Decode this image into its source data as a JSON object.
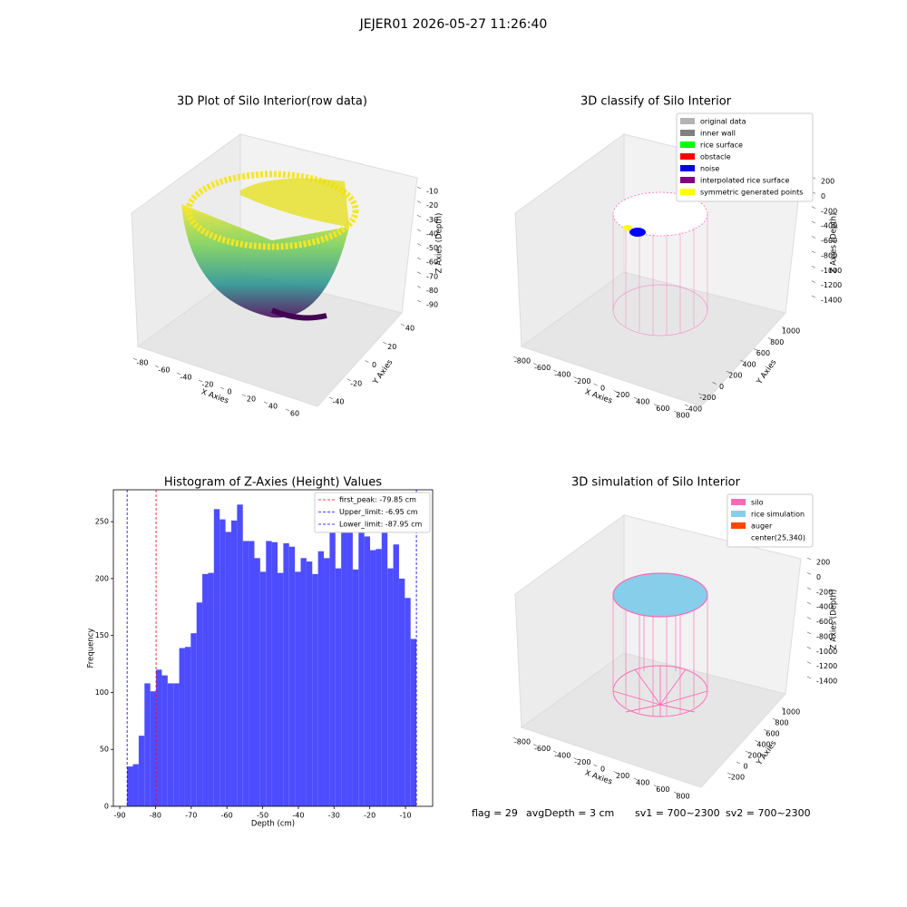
{
  "title": "JEJER01 2026-05-27 11:26:40",
  "chart_data": [
    {
      "type": "scatter3d",
      "title": "3D Plot of Silo Interior(row data)",
      "xlabel": "X Axies",
      "ylabel": "Y Axies",
      "zlabel": "Z Axies (Depth)",
      "xlim": [
        -80,
        60
      ],
      "xticks": [
        -80,
        -60,
        -40,
        -20,
        0,
        20,
        40,
        60
      ],
      "ylim": [
        -40,
        40
      ],
      "yticks": [
        -40,
        -20,
        0,
        20,
        40
      ],
      "zlim": [
        -10,
        -90
      ],
      "zticks": [
        -10,
        -20,
        -30,
        -40,
        -50,
        -60,
        -70,
        -80,
        -90
      ]
    },
    {
      "type": "scatter3d",
      "title": "3D classify of Silo Interior",
      "xlabel": "X Axies",
      "ylabel": "Y Axies",
      "zlabel": "Z Axies (Depth)",
      "xlim": [
        -800,
        800
      ],
      "xticks": [
        -800,
        -600,
        -400,
        -200,
        0,
        200,
        400,
        600,
        800
      ],
      "ylim": [
        -400,
        1000
      ],
      "yticks": [
        -400,
        -200,
        0,
        200,
        400,
        600,
        800,
        1000
      ],
      "zlim": [
        200,
        -1400
      ],
      "zticks": [
        200,
        0,
        -200,
        -400,
        -600,
        -800,
        -1000,
        -1200,
        -1400
      ],
      "series": [
        {
          "name": "original data",
          "color": "#b3b3b3"
        },
        {
          "name": "inner wall",
          "color": "#808080"
        },
        {
          "name": "rice surface",
          "color": "#00ff00"
        },
        {
          "name": "obstacle",
          "color": "#ff0000"
        },
        {
          "name": "noise",
          "color": "#0000ff"
        },
        {
          "name": "interpolated rice surface",
          "color": "#800080"
        },
        {
          "name": "symmetric generated points",
          "color": "#ffff00"
        }
      ]
    },
    {
      "type": "histogram",
      "title": "Histogram of Z-Axies (Height) Values",
      "xlabel": "Depth (cm)",
      "ylabel": "Frequency",
      "color": "#4d4dff",
      "bins": [
        -87.95,
        -86.33,
        -84.71,
        -83.09,
        -81.47,
        -79.85,
        -78.23,
        -76.61,
        -74.99,
        -73.37,
        -71.75,
        -70.13,
        -68.51,
        -66.89,
        -65.27,
        -63.65,
        -62.03,
        -60.41,
        -58.79,
        -57.17,
        -55.55,
        -53.93,
        -52.31,
        -50.69,
        -49.07,
        -47.45,
        -45.83,
        -44.21,
        -42.59,
        -40.97,
        -39.35,
        -37.73,
        -36.11,
        -34.49,
        -32.87,
        -31.25,
        -29.63,
        -28.01,
        -26.39,
        -24.77,
        -23.15,
        -21.53,
        -19.91,
        -18.29,
        -16.67,
        -15.05,
        -13.43,
        -11.81,
        -10.19,
        -8.57,
        -6.95
      ],
      "values": [
        35,
        37,
        62,
        108,
        101,
        120,
        115,
        108,
        108,
        139,
        140,
        152,
        179,
        204,
        205,
        261,
        252,
        241,
        251,
        265,
        233,
        233,
        218,
        206,
        233,
        232,
        205,
        231,
        228,
        206,
        218,
        215,
        204,
        224,
        218,
        245,
        209,
        241,
        243,
        208,
        244,
        237,
        225,
        226,
        244,
        209,
        230,
        200,
        183,
        147
      ],
      "xlim": [
        -91.8,
        -2.4
      ],
      "xticks": [
        -90,
        -80,
        -70,
        -60,
        -50,
        -40,
        -30,
        -20,
        -10
      ],
      "ylim": [
        0,
        278
      ],
      "yticks": [
        0,
        50,
        100,
        150,
        200,
        250
      ],
      "lines": [
        {
          "name": "first_peak: -79.85 cm",
          "value": -79.85,
          "color": "#ff0000"
        },
        {
          "name": "Upper_limit: -6.95 cm",
          "value": -6.95,
          "color": "#0000ff"
        },
        {
          "name": "Lower_limit: -87.95 cm",
          "value": -87.95,
          "color": "#0000ff"
        }
      ]
    },
    {
      "type": "scatter3d",
      "title": "3D simulation of Silo Interior",
      "xlabel": "X Axies",
      "ylabel": "Y Axies",
      "zlabel": "Z Axies (Depth)",
      "xlim": [
        -800,
        800
      ],
      "xticks": [
        -800,
        -600,
        -400,
        -200,
        0,
        200,
        400,
        600,
        800
      ],
      "ylim": [
        -200,
        1000
      ],
      "yticks": [
        -200,
        0,
        200,
        400,
        600,
        800,
        1000
      ],
      "zlim": [
        200,
        -1400
      ],
      "zticks": [
        200,
        0,
        -200,
        -400,
        -600,
        -800,
        -1000,
        -1200,
        -1400
      ],
      "series": [
        {
          "name": "silo",
          "color": "#ff69b4"
        },
        {
          "name": "rice simulation",
          "color": "#87ceeb"
        },
        {
          "name": "auger",
          "color": "#ff4500"
        },
        {
          "name": "center(25,340)"
        }
      ]
    }
  ],
  "footer": [
    "flag = 29",
    "avgDepth = 3 cm",
    "sv1 = 700~2300",
    "sv2 = 700~2300"
  ]
}
